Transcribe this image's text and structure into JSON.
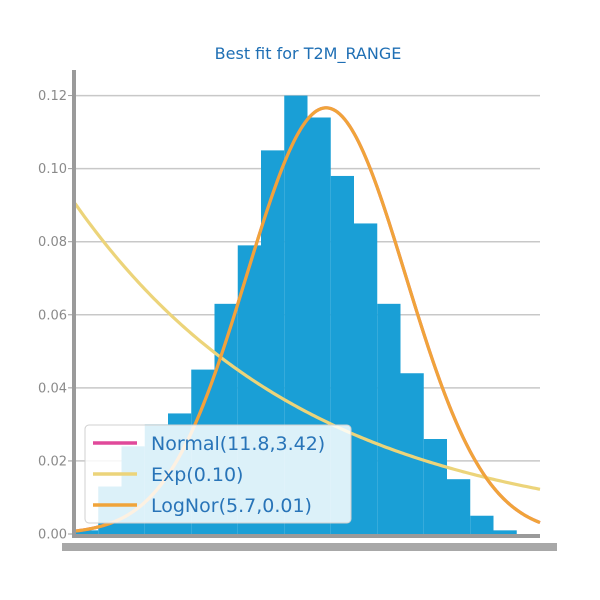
{
  "chart_data": {
    "type": "bar",
    "title": "Best fit for T2M_RANGE",
    "xlabel": "",
    "ylabel": "",
    "xlim": [
      1,
      21
    ],
    "ylim": [
      0,
      0.127
    ],
    "yticks": [
      0.0,
      0.02,
      0.04,
      0.06,
      0.08,
      0.1,
      0.12
    ],
    "ytick_labels": [
      "0.00",
      "0.02",
      "0.04",
      "0.06",
      "0.08",
      "0.10",
      "0.12"
    ],
    "grid": true,
    "legend_position": "lower-left",
    "histogram": {
      "color": "#1a9fd6",
      "bin_edges": [
        1,
        2,
        3,
        4,
        5,
        6,
        7,
        8,
        9,
        10,
        11,
        12,
        13,
        14,
        15,
        16,
        17,
        18,
        19,
        20,
        21
      ],
      "densities": [
        0.001,
        0.013,
        0.024,
        0.03,
        0.033,
        0.045,
        0.063,
        0.079,
        0.105,
        0.12,
        0.114,
        0.098,
        0.085,
        0.063,
        0.044,
        0.026,
        0.015,
        0.005,
        0.001,
        0.0
      ]
    },
    "series": [
      {
        "name": "Normal(11.8,3.42)",
        "dist": "normal",
        "mean": 11.8,
        "sd": 3.42,
        "color": "#e0499a"
      },
      {
        "name": "Exp(0.10)",
        "dist": "exponential",
        "rate": 0.1,
        "color": "#ecd47a"
      },
      {
        "name": "LogNor(5.7,0.01)",
        "dist": "normal",
        "mean": 11.8,
        "sd": 3.42,
        "color": "#f0a43a"
      }
    ]
  }
}
